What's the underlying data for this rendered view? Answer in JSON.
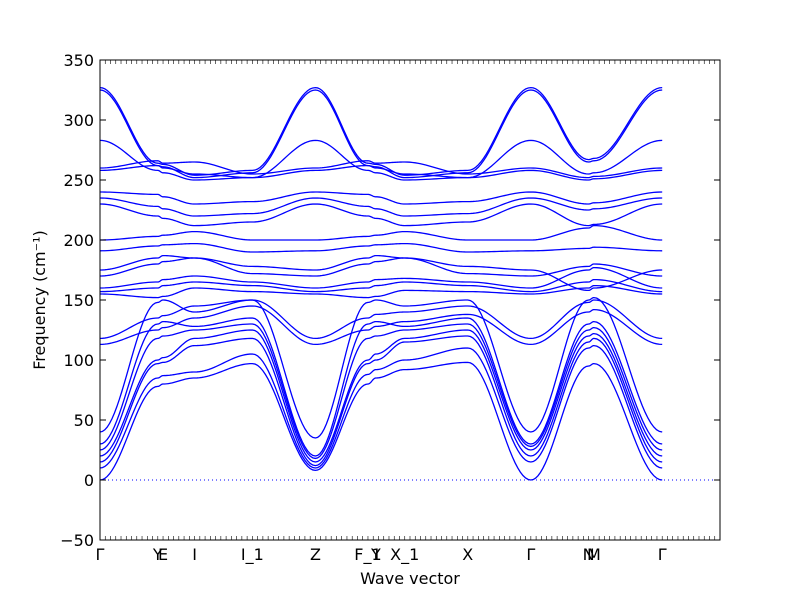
{
  "chart_data": {
    "type": "line",
    "title": "",
    "xlabel": "Wave vector",
    "ylabel": "Frequency (cm⁻¹)",
    "ylim": [
      -50,
      350
    ],
    "yticks": [
      -50,
      0,
      50,
      100,
      150,
      200,
      250,
      300,
      350
    ],
    "grid": false,
    "legend": "none",
    "colors": {
      "bands": "#0000ff",
      "zero_line": "#0000ff",
      "axes": "#000000"
    },
    "zero_line_style": "dotted",
    "x_range": [
      0,
      11.8
    ],
    "high_symmetry_points": [
      {
        "label": "Γ",
        "x": 0.0
      },
      {
        "label": "Y",
        "x": 1.1
      },
      {
        "label": "E",
        "x": 1.2
      },
      {
        "label": "I",
        "x": 1.8
      },
      {
        "label": "I_1",
        "x": 2.9
      },
      {
        "label": "Z",
        "x": 4.1
      },
      {
        "label": "F_1",
        "x": 5.1
      },
      {
        "label": "Y",
        "x": 5.25
      },
      {
        "label": "X_1",
        "x": 5.8
      },
      {
        "label": "X",
        "x": 7.0
      },
      {
        "label": "Γ",
        "x": 8.2
      },
      {
        "label": "N",
        "x": 9.3
      },
      {
        "label": "M",
        "x": 9.4
      },
      {
        "label": "Γ",
        "x": 10.7
      }
    ],
    "band_nodes_x": [
      0.0,
      1.1,
      1.2,
      1.8,
      2.9,
      4.1,
      5.1,
      5.25,
      5.8,
      7.0,
      8.2,
      9.3,
      9.4,
      10.7
    ],
    "series": [
      {
        "values": [
          0,
          78,
          80,
          85,
          97,
          8,
          80,
          85,
          92,
          98,
          0,
          95,
          97,
          0
        ]
      },
      {
        "values": [
          10,
          85,
          87,
          90,
          105,
          10,
          88,
          92,
          100,
          110,
          15,
          110,
          112,
          10
        ]
      },
      {
        "values": [
          15,
          97,
          98,
          112,
          118,
          12,
          97,
          100,
          115,
          120,
          20,
          115,
          118,
          15
        ]
      },
      {
        "values": [
          20,
          100,
          102,
          118,
          125,
          15,
          100,
          105,
          118,
          125,
          25,
          120,
          122,
          20
        ]
      },
      {
        "values": [
          25,
          118,
          120,
          125,
          130,
          18,
          118,
          120,
          125,
          130,
          28,
          125,
          127,
          25
        ]
      },
      {
        "values": [
          30,
          130,
          132,
          128,
          135,
          20,
          130,
          132,
          128,
          135,
          30,
          130,
          132,
          30
        ]
      },
      {
        "values": [
          40,
          148,
          150,
          140,
          150,
          35,
          148,
          150,
          145,
          150,
          40,
          150,
          152,
          40
        ]
      },
      {
        "values": [
          113,
          125,
          127,
          135,
          145,
          113,
          125,
          128,
          132,
          138,
          113,
          140,
          142,
          113
        ]
      },
      {
        "values": [
          118,
          135,
          137,
          145,
          150,
          118,
          135,
          138,
          140,
          145,
          118,
          148,
          150,
          118
        ]
      },
      {
        "values": [
          155,
          152,
          153,
          160,
          157,
          155,
          152,
          153,
          158,
          157,
          155,
          160,
          162,
          155
        ]
      },
      {
        "values": [
          157,
          160,
          162,
          165,
          162,
          157,
          160,
          162,
          165,
          162,
          157,
          165,
          167,
          157
        ]
      },
      {
        "values": [
          160,
          165,
          167,
          170,
          165,
          160,
          165,
          167,
          168,
          165,
          160,
          175,
          177,
          160
        ]
      },
      {
        "values": [
          170,
          180,
          182,
          185,
          172,
          170,
          180,
          182,
          185,
          172,
          170,
          178,
          180,
          170
        ]
      },
      {
        "values": [
          175,
          185,
          187,
          185,
          178,
          175,
          185,
          187,
          185,
          178,
          175,
          158,
          160,
          175
        ]
      },
      {
        "values": [
          191,
          195,
          196,
          197,
          190,
          191,
          195,
          196,
          197,
          190,
          191,
          193,
          194,
          191
        ]
      },
      {
        "values": [
          200,
          203,
          204,
          207,
          200,
          200,
          203,
          204,
          207,
          200,
          200,
          210,
          212,
          200
        ]
      },
      {
        "values": [
          230,
          220,
          218,
          212,
          215,
          230,
          220,
          218,
          212,
          215,
          230,
          212,
          213,
          230
        ]
      },
      {
        "values": [
          235,
          228,
          226,
          220,
          222,
          235,
          228,
          226,
          220,
          222,
          235,
          225,
          226,
          235
        ]
      },
      {
        "values": [
          240,
          238,
          236,
          230,
          232,
          240,
          238,
          236,
          230,
          232,
          240,
          230,
          231,
          240
        ]
      },
      {
        "values": [
          258,
          262,
          260,
          255,
          252,
          258,
          262,
          260,
          255,
          252,
          258,
          250,
          251,
          258
        ]
      },
      {
        "values": [
          260,
          266,
          264,
          265,
          255,
          260,
          266,
          264,
          265,
          255,
          260,
          252,
          253,
          260
        ]
      },
      {
        "values": [
          283,
          258,
          256,
          250,
          252,
          283,
          258,
          256,
          250,
          252,
          283,
          255,
          256,
          283
        ]
      },
      {
        "values": [
          325,
          262,
          261,
          252,
          256,
          325,
          262,
          261,
          252,
          256,
          325,
          265,
          266,
          325
        ]
      },
      {
        "values": [
          327,
          264,
          263,
          254,
          258,
          327,
          264,
          263,
          254,
          258,
          327,
          267,
          268,
          327
        ]
      }
    ]
  }
}
